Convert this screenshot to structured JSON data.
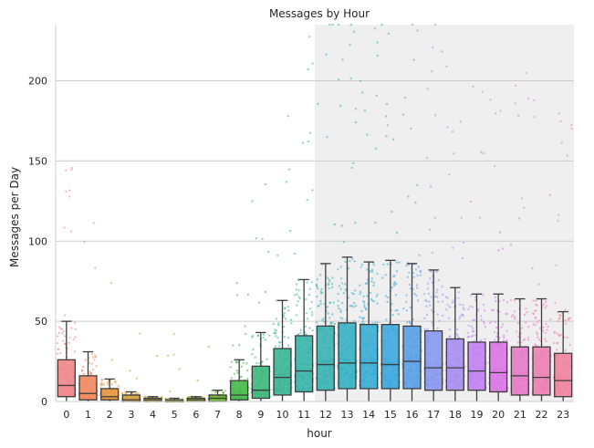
{
  "chart_data": {
    "type": "box",
    "title": "Messages by Hour",
    "xlabel": "hour",
    "ylabel": "Messages per Day",
    "ylim": [
      0,
      235
    ],
    "yticks": [
      0,
      50,
      100,
      150,
      200
    ],
    "grid": "horizontal",
    "highlight_band": {
      "from_category": "12",
      "to_category": "23"
    },
    "categories": [
      "0",
      "1",
      "2",
      "3",
      "4",
      "5",
      "6",
      "7",
      "8",
      "9",
      "10",
      "11",
      "12",
      "13",
      "14",
      "15",
      "16",
      "17",
      "18",
      "19",
      "20",
      "21",
      "22",
      "23"
    ],
    "colors": [
      "#f0868a",
      "#f08a5f",
      "#e8953e",
      "#d59f3b",
      "#c2a72c",
      "#b0ab2c",
      "#9bb22e",
      "#6ab52d",
      "#45b84a",
      "#3db87a",
      "#39b694",
      "#39b4a8",
      "#3ab3b4",
      "#38b1c3",
      "#39aed5",
      "#3ea8e0",
      "#5aa0e8",
      "#8899ee",
      "#a88ff0",
      "#c083ef",
      "#da77e6",
      "#e77bc8",
      "#ec80b2",
      "#ef849e"
    ],
    "boxes": [
      {
        "category": "0",
        "q1": 3,
        "median": 10,
        "q3": 26,
        "whisker_low": 0,
        "whisker_high": 50
      },
      {
        "category": "1",
        "q1": 1,
        "median": 5,
        "q3": 16,
        "whisker_low": 0,
        "whisker_high": 31
      },
      {
        "category": "2",
        "q1": 1,
        "median": 3,
        "q3": 8,
        "whisker_low": 0,
        "whisker_high": 14
      },
      {
        "category": "3",
        "q1": 0,
        "median": 1,
        "q3": 4,
        "whisker_low": 0,
        "whisker_high": 6
      },
      {
        "category": "4",
        "q1": 0,
        "median": 1,
        "q3": 2,
        "whisker_low": 0,
        "whisker_high": 3
      },
      {
        "category": "5",
        "q1": 0,
        "median": 0,
        "q3": 1,
        "whisker_low": 0,
        "whisker_high": 2
      },
      {
        "category": "6",
        "q1": 0,
        "median": 1,
        "q3": 2,
        "whisker_low": 0,
        "whisker_high": 3
      },
      {
        "category": "7",
        "q1": 0,
        "median": 2,
        "q3": 4,
        "whisker_low": 0,
        "whisker_high": 7
      },
      {
        "category": "8",
        "q1": 1,
        "median": 4,
        "q3": 13,
        "whisker_low": 0,
        "whisker_high": 26
      },
      {
        "category": "9",
        "q1": 2,
        "median": 7,
        "q3": 22,
        "whisker_low": 0,
        "whisker_high": 43
      },
      {
        "category": "10",
        "q1": 4,
        "median": 15,
        "q3": 33,
        "whisker_low": 0,
        "whisker_high": 63
      },
      {
        "category": "11",
        "q1": 6,
        "median": 19,
        "q3": 41,
        "whisker_low": 0,
        "whisker_high": 76
      },
      {
        "category": "12",
        "q1": 7,
        "median": 23,
        "q3": 47,
        "whisker_low": 0,
        "whisker_high": 86
      },
      {
        "category": "13",
        "q1": 8,
        "median": 24,
        "q3": 49,
        "whisker_low": 0,
        "whisker_high": 90
      },
      {
        "category": "14",
        "q1": 8,
        "median": 24,
        "q3": 48,
        "whisker_low": 0,
        "whisker_high": 87
      },
      {
        "category": "15",
        "q1": 8,
        "median": 23,
        "q3": 48,
        "whisker_low": 0,
        "whisker_high": 88
      },
      {
        "category": "16",
        "q1": 8,
        "median": 25,
        "q3": 47,
        "whisker_low": 0,
        "whisker_high": 86
      },
      {
        "category": "17",
        "q1": 7,
        "median": 21,
        "q3": 44,
        "whisker_low": 0,
        "whisker_high": 82
      },
      {
        "category": "18",
        "q1": 7,
        "median": 21,
        "q3": 39,
        "whisker_low": 0,
        "whisker_high": 71
      },
      {
        "category": "19",
        "q1": 7,
        "median": 19,
        "q3": 37,
        "whisker_low": 0,
        "whisker_high": 67
      },
      {
        "category": "20",
        "q1": 6,
        "median": 18,
        "q3": 37,
        "whisker_low": 0,
        "whisker_high": 67
      },
      {
        "category": "21",
        "q1": 4,
        "median": 16,
        "q3": 34,
        "whisker_low": 0,
        "whisker_high": 64
      },
      {
        "category": "22",
        "q1": 4,
        "median": 15,
        "q3": 34,
        "whisker_low": 0,
        "whisker_high": 64
      },
      {
        "category": "23",
        "q1": 3,
        "median": 13,
        "q3": 30,
        "whisker_low": 0,
        "whisker_high": 56
      }
    ]
  }
}
